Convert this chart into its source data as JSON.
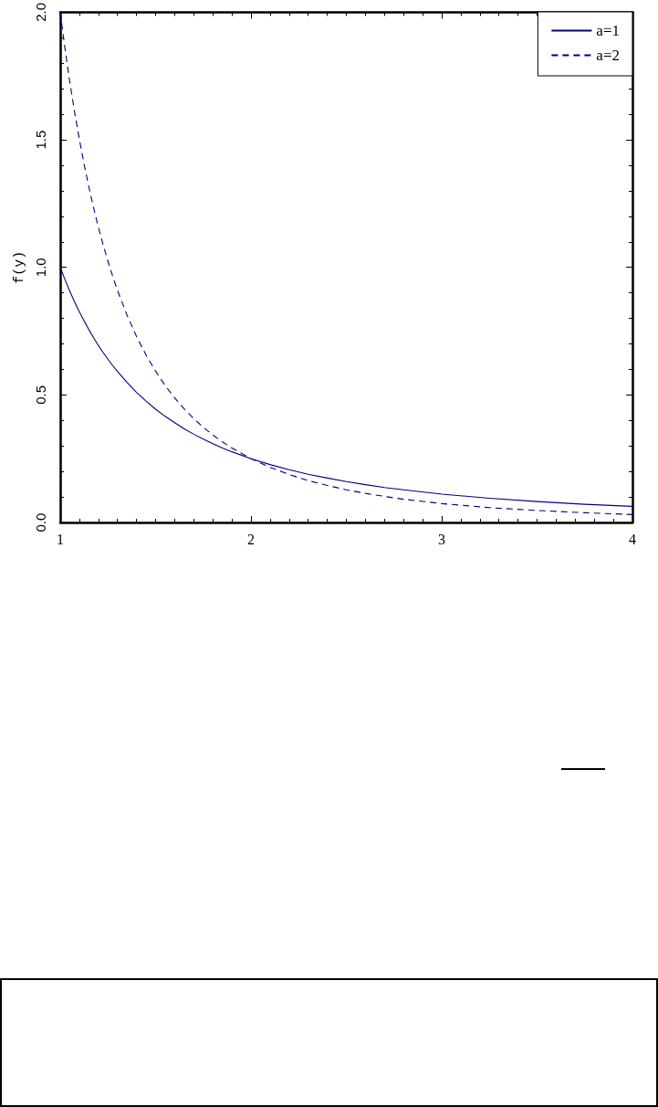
{
  "chart_data": {
    "type": "line",
    "ylabel": "f(y)",
    "x": [
      1,
      1.025,
      1.05,
      1.075,
      1.1,
      1.125,
      1.15,
      1.175,
      1.2,
      1.225,
      1.25,
      1.275,
      1.3,
      1.35,
      1.4,
      1.45,
      1.5,
      1.55,
      1.6,
      1.65,
      1.7,
      1.75,
      1.8,
      1.85,
      1.9,
      2,
      2.1,
      2.2,
      2.3,
      2.4,
      2.5,
      2.6,
      2.7,
      2.8,
      3,
      3.25,
      3.5,
      3.75,
      4
    ],
    "series": [
      {
        "name": "a=1",
        "color": "#000080",
        "line_style": "solid",
        "values": [
          1.0,
          0.952,
          0.907,
          0.865,
          0.826,
          0.79,
          0.756,
          0.724,
          0.694,
          0.666,
          0.64,
          0.615,
          0.592,
          0.549,
          0.51,
          0.476,
          0.444,
          0.416,
          0.391,
          0.367,
          0.346,
          0.327,
          0.309,
          0.292,
          0.277,
          0.25,
          0.227,
          0.207,
          0.189,
          0.174,
          0.16,
          0.148,
          0.137,
          0.128,
          0.111,
          0.095,
          0.082,
          0.071,
          0.063
        ]
      },
      {
        "name": "a=2",
        "color": "#000080",
        "line_style": "dashed",
        "values": [
          2.0,
          1.857,
          1.728,
          1.61,
          1.503,
          1.405,
          1.315,
          1.233,
          1.157,
          1.088,
          1.024,
          0.965,
          0.91,
          0.813,
          0.729,
          0.656,
          0.593,
          0.537,
          0.488,
          0.445,
          0.407,
          0.373,
          0.343,
          0.316,
          0.292,
          0.25,
          0.216,
          0.188,
          0.164,
          0.145,
          0.128,
          0.114,
          0.102,
          0.091,
          0.074,
          0.058,
          0.047,
          0.038,
          0.031
        ]
      }
    ],
    "xlim": [
      1,
      4
    ],
    "xticks": [
      1,
      {
        "value": 1.1,
        "label": null
      },
      {
        "value": 1.2,
        "label": null
      },
      {
        "value": 1.3,
        "label": null
      },
      {
        "value": 1.4,
        "label": null
      },
      {
        "value": 1.5,
        "label": null
      },
      {
        "value": 1.6,
        "label": null
      },
      {
        "value": 1.7,
        "label": null
      },
      {
        "value": 1.8,
        "label": null
      },
      {
        "value": 1.9,
        "label": null
      },
      2,
      {
        "value": 2.1,
        "label": null
      },
      {
        "value": 2.2,
        "label": null
      },
      {
        "value": 2.3,
        "label": null
      },
      {
        "value": 2.4,
        "label": null
      },
      {
        "value": 2.5,
        "label": null
      },
      {
        "value": 2.6,
        "label": null
      },
      {
        "value": 2.7,
        "label": null
      },
      {
        "value": 2.8,
        "label": null
      },
      {
        "value": 2.9,
        "label": null
      },
      3,
      {
        "value": 3.1,
        "label": null
      },
      {
        "value": 3.2,
        "label": null
      },
      {
        "value": 3.3,
        "label": null
      },
      {
        "value": 3.4,
        "label": null
      },
      {
        "value": 3.5,
        "label": null
      },
      {
        "value": 3.6,
        "label": null
      },
      {
        "value": 3.7,
        "label": null
      },
      {
        "value": 3.8,
        "label": null
      },
      {
        "value": 3.9,
        "label": null
      },
      4
    ],
    "ylim": [
      0,
      2
    ],
    "yticks": [
      {
        "value": 0,
        "label": "0.0"
      },
      {
        "value": 0.1,
        "label": null
      },
      {
        "value": 0.2,
        "label": null
      },
      {
        "value": 0.3,
        "label": null
      },
      {
        "value": 0.4,
        "label": null
      },
      {
        "value": 0.5,
        "label": "0.5"
      },
      {
        "value": 0.6,
        "label": null
      },
      {
        "value": 0.7,
        "label": null
      },
      {
        "value": 0.8,
        "label": null
      },
      {
        "value": 0.9,
        "label": null
      },
      {
        "value": 1,
        "label": "1.0"
      },
      {
        "value": 1.1,
        "label": null
      },
      {
        "value": 1.2,
        "label": null
      },
      {
        "value": 1.3,
        "label": null
      },
      {
        "value": 1.4,
        "label": null
      },
      {
        "value": 1.5,
        "label": "1.5"
      },
      {
        "value": 1.6,
        "label": null
      },
      {
        "value": 1.7,
        "label": null
      },
      {
        "value": 1.8,
        "label": null
      },
      {
        "value": 1.9,
        "label": null
      },
      {
        "value": 2,
        "label": "2.0"
      }
    ],
    "legend": "top right",
    "marker": "none"
  }
}
